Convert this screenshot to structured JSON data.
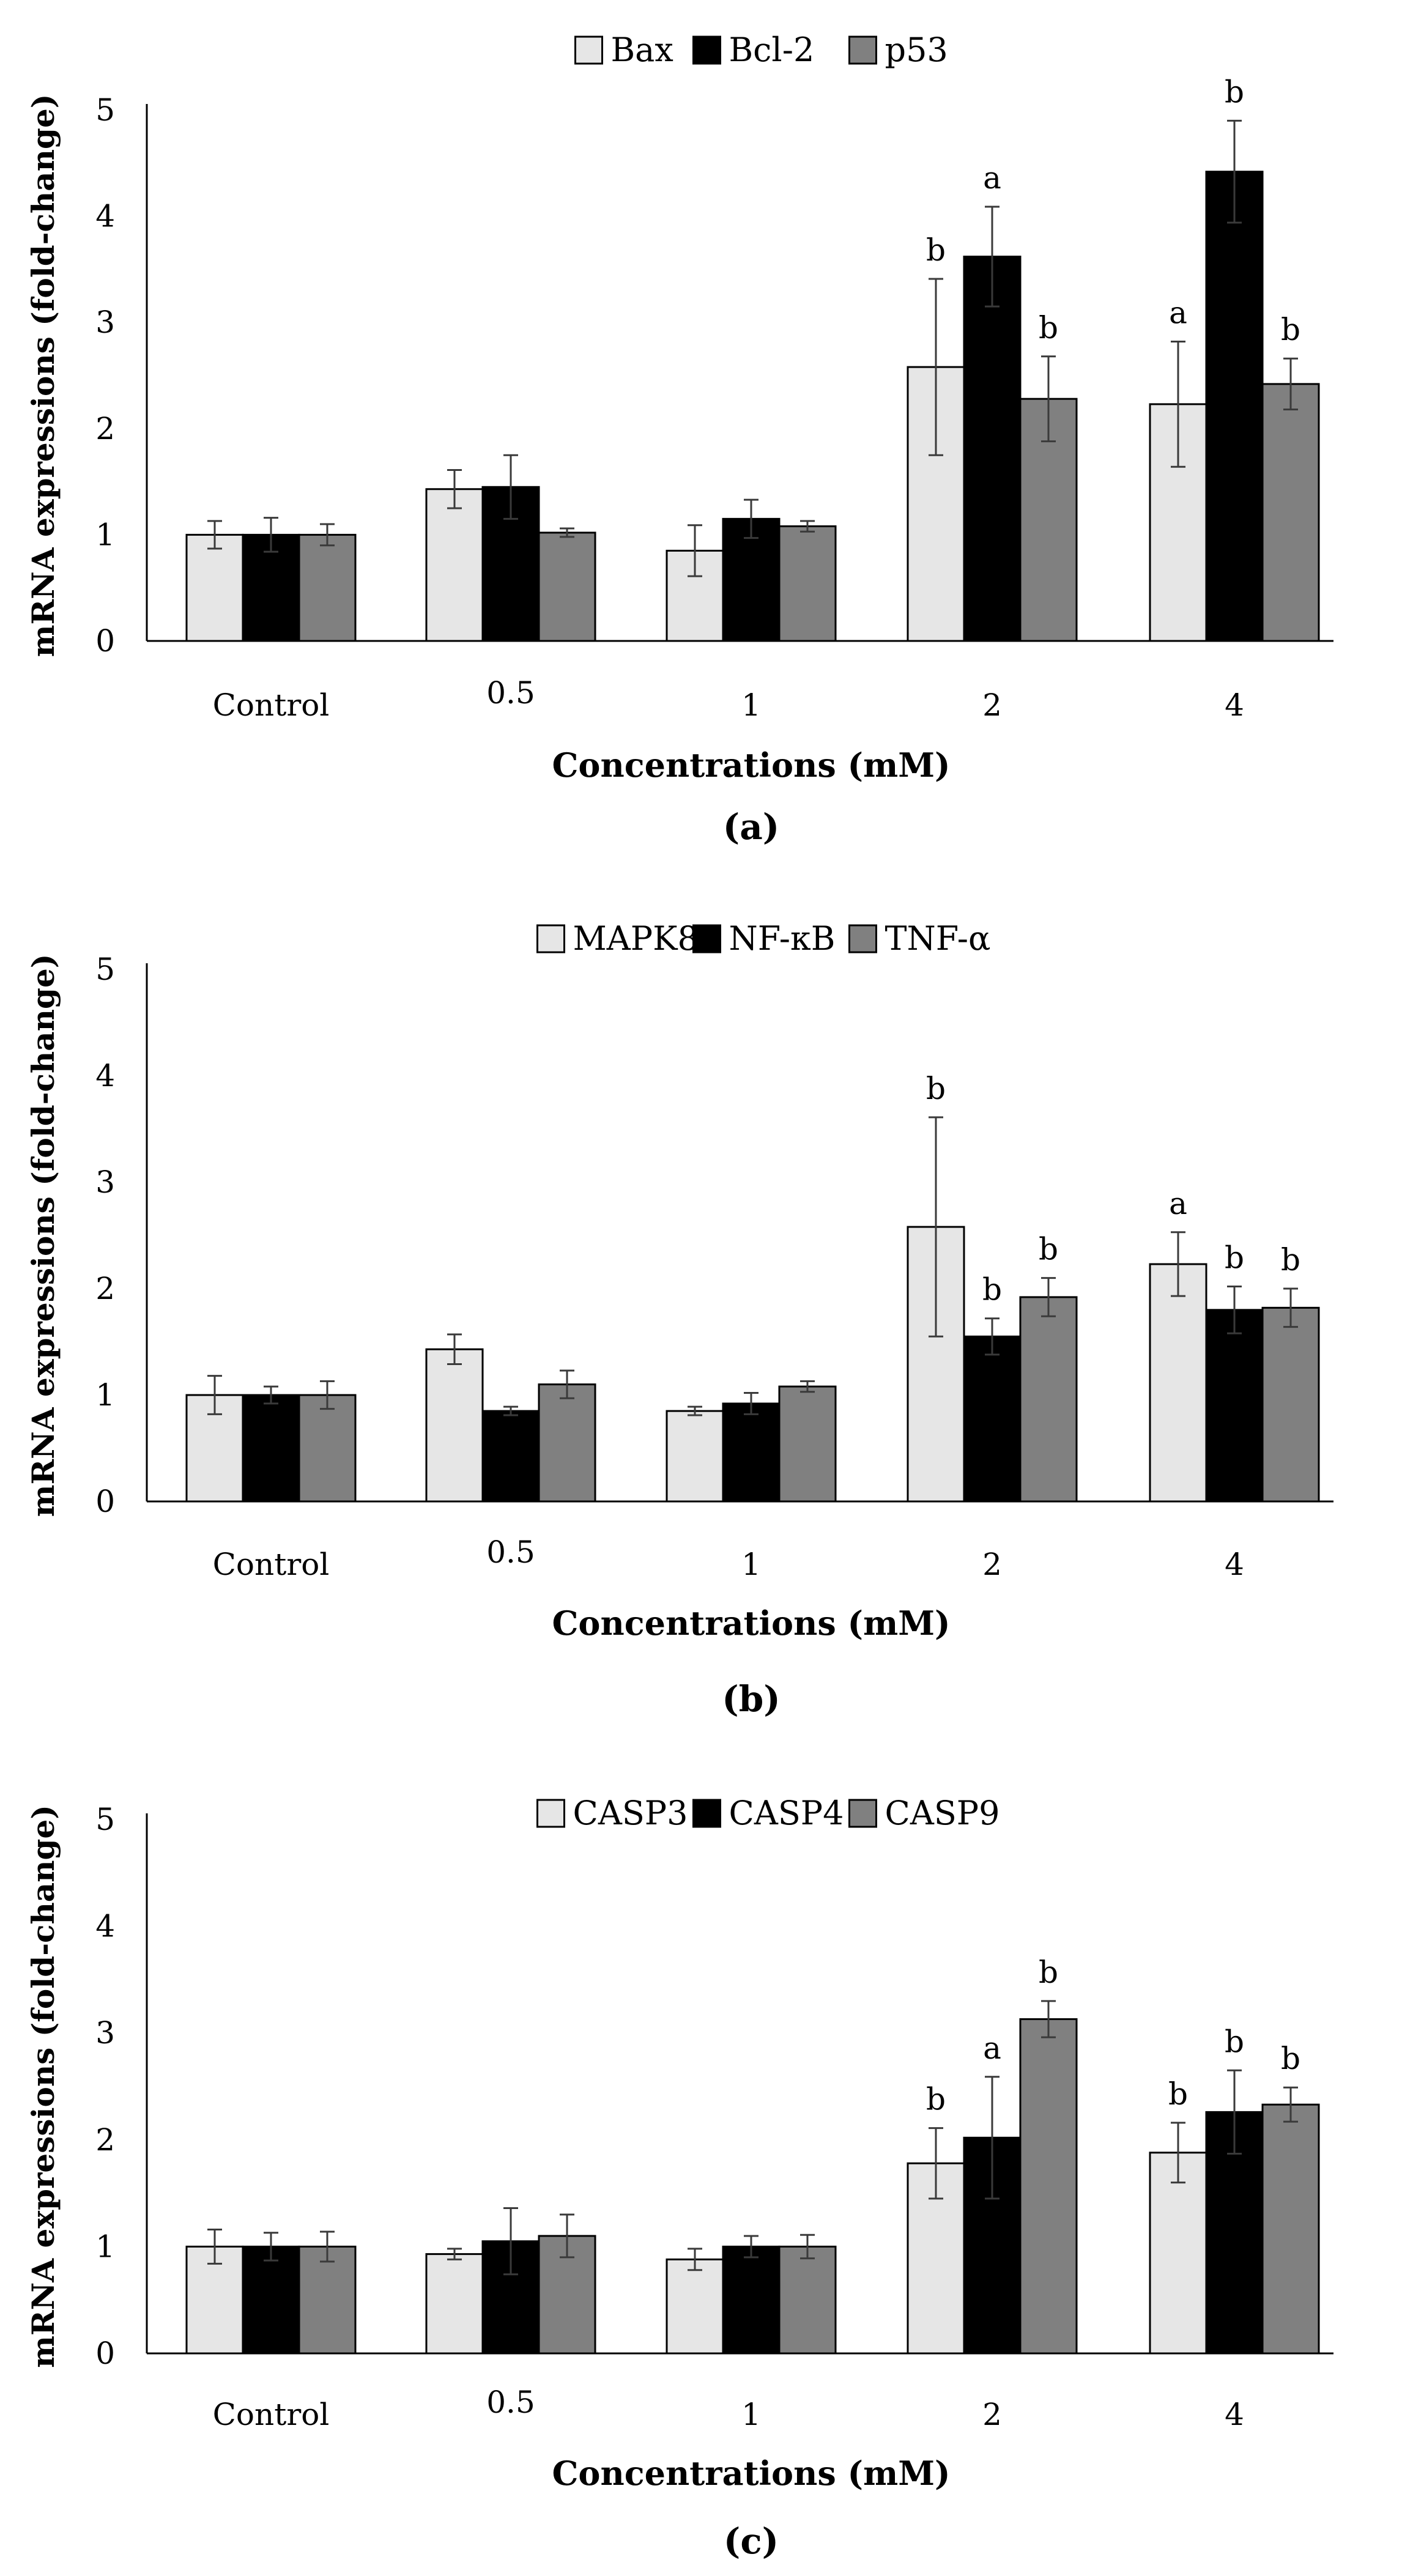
{
  "figure": {
    "panels": [
      "(a)",
      "(b)",
      "(c)"
    ]
  },
  "chart_data": [
    {
      "type": "bar",
      "panel_label": "(a)",
      "title": "",
      "xlabel": "Concentrations (mM)",
      "ylabel": "mRNA expressions (fold-change)",
      "ylim": [
        0,
        5
      ],
      "yticks": [
        "0",
        "1",
        "2",
        "3",
        "4",
        "5"
      ],
      "categories": [
        "Control",
        "0.5",
        "1",
        "2",
        "4"
      ],
      "legend_position": "top-center",
      "series": [
        {
          "name": "Bax",
          "color": "#e6e6e6",
          "values": [
            1.0,
            1.43,
            0.85,
            2.58,
            2.23
          ],
          "errors": [
            0.13,
            0.18,
            0.24,
            0.83,
            0.59
          ],
          "labels": [
            "",
            "",
            "",
            "b",
            "a"
          ]
        },
        {
          "name": "Bcl-2",
          "color": "#000000",
          "values": [
            1.0,
            1.45,
            1.15,
            3.62,
            4.42
          ],
          "errors": [
            0.16,
            0.3,
            0.18,
            0.47,
            0.48
          ],
          "labels": [
            "",
            "",
            "",
            "a",
            "b"
          ]
        },
        {
          "name": "p53",
          "color": "#808080",
          "values": [
            1.0,
            1.02,
            1.08,
            2.28,
            2.42
          ],
          "errors": [
            0.1,
            0.04,
            0.05,
            0.4,
            0.24
          ],
          "labels": [
            "",
            "",
            "",
            "b",
            "b"
          ]
        }
      ]
    },
    {
      "type": "bar",
      "panel_label": "(b)",
      "title": "",
      "xlabel": "Concentrations (mM)",
      "ylabel": "mRNA expressions (fold-change)",
      "ylim": [
        0,
        5
      ],
      "yticks": [
        "0",
        "1",
        "2",
        "3",
        "4",
        "5"
      ],
      "categories": [
        "Control",
        "0.5",
        "1",
        "2",
        "4"
      ],
      "legend_position": "top-center",
      "series": [
        {
          "name": "MAPK8",
          "color": "#e6e6e6",
          "values": [
            1.0,
            1.43,
            0.85,
            2.58,
            2.23
          ],
          "errors": [
            0.18,
            0.14,
            0.04,
            1.03,
            0.3
          ],
          "labels": [
            "",
            "",
            "",
            "b",
            "a"
          ]
        },
        {
          "name": "NF-κB",
          "color": "#000000",
          "values": [
            1.0,
            0.85,
            0.92,
            1.55,
            1.8
          ],
          "errors": [
            0.08,
            0.04,
            0.1,
            0.17,
            0.22
          ],
          "labels": [
            "",
            "",
            "",
            "b",
            "b"
          ]
        },
        {
          "name": "TNF-α",
          "color": "#808080",
          "values": [
            1.0,
            1.1,
            1.08,
            1.92,
            1.82
          ],
          "errors": [
            0.13,
            0.13,
            0.05,
            0.18,
            0.18
          ],
          "labels": [
            "",
            "",
            "",
            "b",
            "b"
          ]
        }
      ]
    },
    {
      "type": "bar",
      "panel_label": "(c)",
      "title": "",
      "xlabel": "Concentrations (mM)",
      "ylabel": "mRNA expressions (fold-change)",
      "ylim": [
        0,
        5
      ],
      "yticks": [
        "0",
        "1",
        "2",
        "3",
        "4",
        "5"
      ],
      "categories": [
        "Control",
        "0.5",
        "1",
        "2",
        "4"
      ],
      "legend_position": "top-center",
      "series": [
        {
          "name": "CASP3",
          "color": "#e6e6e6",
          "values": [
            1.0,
            0.93,
            0.88,
            1.78,
            1.88
          ],
          "errors": [
            0.16,
            0.05,
            0.1,
            0.33,
            0.28
          ],
          "labels": [
            "",
            "",
            "",
            "b",
            "b"
          ]
        },
        {
          "name": "CASP4",
          "color": "#000000",
          "values": [
            1.0,
            1.05,
            1.0,
            2.02,
            2.26
          ],
          "errors": [
            0.13,
            0.31,
            0.1,
            0.57,
            0.39
          ],
          "labels": [
            "",
            "",
            "",
            "a",
            "b"
          ]
        },
        {
          "name": "CASP9",
          "color": "#808080",
          "values": [
            1.0,
            1.1,
            1.0,
            3.13,
            2.33
          ],
          "errors": [
            0.14,
            0.2,
            0.11,
            0.17,
            0.16
          ],
          "labels": [
            "",
            "",
            "",
            "b",
            "b"
          ]
        }
      ]
    }
  ]
}
